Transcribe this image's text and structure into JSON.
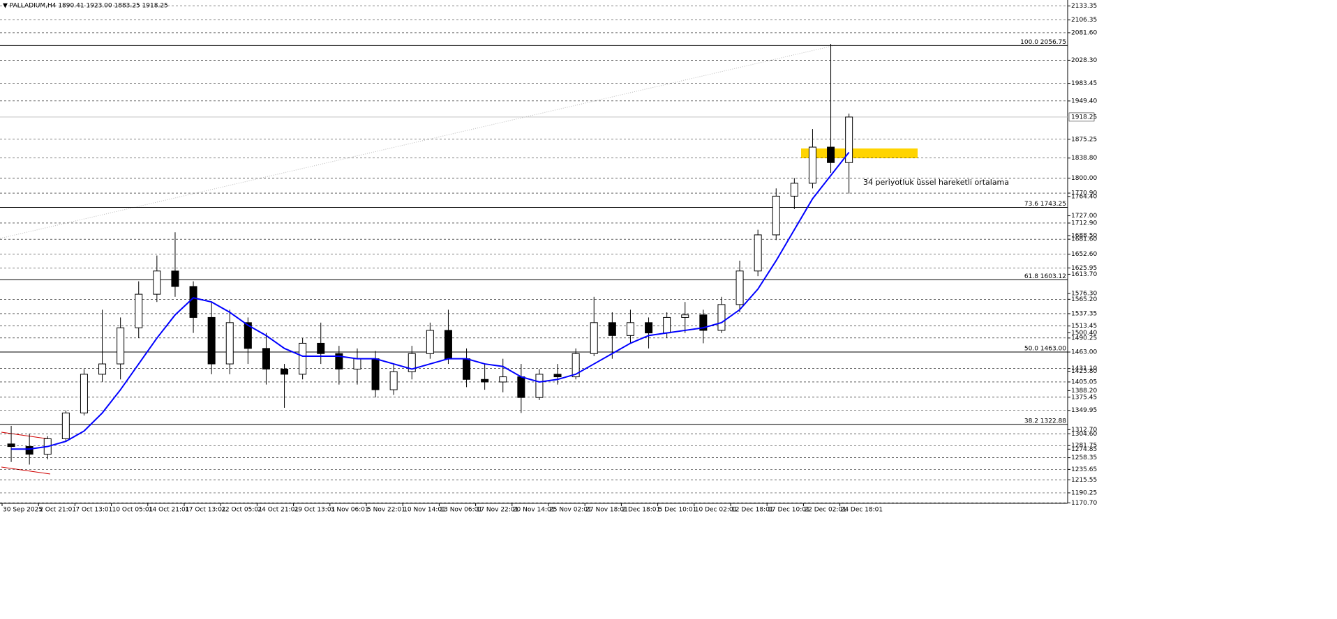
{
  "chart_data": {
    "type": "candlestick",
    "title": "▼ PALLADIUM,H4  1890.41 1923.00 1883.25 1918.25",
    "categories": [
      "30 Sep 2025",
      null,
      "2 Oct 21:01",
      null,
      "7 Oct 13:01",
      null,
      "10 Oct 05:01",
      null,
      "14 Oct 21:01",
      null,
      "17 Oct 13:01",
      null,
      "22 Oct 05:01",
      null,
      "24 Oct 21:01",
      null,
      "29 Oct 13:01",
      null,
      "3 Nov 06:01",
      null,
      "5 Nov 22:01",
      null,
      "10 Nov 14:01",
      null,
      "13 Nov 06:01",
      null,
      "17 Nov 22:01",
      null,
      "20 Nov 14:01",
      null,
      "25 Nov 02:01",
      null,
      "27 Nov 18:01",
      null,
      "2 Dec 18:01",
      null,
      "5 Dec 10:01",
      null,
      "10 Dec 02:01",
      null,
      "12 Dec 18:01",
      null,
      "17 Dec 10:01",
      null,
      "22 Dec 02:01",
      null,
      "24 Dec 18:01"
    ],
    "open": [
      1285,
      1280,
      1265,
      1295,
      1345,
      1420,
      1440,
      1510,
      1575,
      1620,
      1590,
      1530,
      1440,
      1520,
      1470,
      1430,
      1420,
      1480,
      1460,
      1430,
      1450,
      1390,
      1425,
      1460,
      1505,
      1450,
      1410,
      1405,
      1415,
      1375,
      1420,
      1415,
      1460,
      1520,
      1495,
      1520,
      1500,
      1530,
      1535,
      1505,
      1555,
      1620,
      1690,
      1765,
      1790,
      1860,
      1830
    ],
    "high": [
      1320,
      1305,
      1300,
      1350,
      1430,
      1545,
      1530,
      1600,
      1650,
      1695,
      1600,
      1560,
      1545,
      1530,
      1500,
      1440,
      1490,
      1520,
      1475,
      1470,
      1465,
      1440,
      1475,
      1520,
      1545,
      1470,
      1440,
      1450,
      1440,
      1430,
      1440,
      1470,
      1570,
      1540,
      1545,
      1530,
      1540,
      1560,
      1545,
      1570,
      1640,
      1700,
      1780,
      1800,
      1895,
      2060,
      1925
    ],
    "low": [
      1250,
      1245,
      1255,
      1290,
      1340,
      1405,
      1410,
      1490,
      1560,
      1570,
      1500,
      1420,
      1420,
      1440,
      1400,
      1355,
      1410,
      1440,
      1400,
      1400,
      1375,
      1380,
      1410,
      1450,
      1440,
      1395,
      1390,
      1385,
      1345,
      1370,
      1400,
      1410,
      1455,
      1450,
      1480,
      1470,
      1490,
      1500,
      1480,
      1500,
      1540,
      1610,
      1680,
      1740,
      1780,
      1810,
      1770
    ],
    "close": [
      1280,
      1265,
      1295,
      1345,
      1420,
      1440,
      1510,
      1575,
      1620,
      1590,
      1530,
      1440,
      1520,
      1470,
      1430,
      1420,
      1480,
      1460,
      1430,
      1450,
      1390,
      1425,
      1460,
      1505,
      1450,
      1410,
      1405,
      1415,
      1375,
      1420,
      1415,
      1460,
      1520,
      1495,
      1520,
      1500,
      1530,
      1535,
      1505,
      1555,
      1620,
      1690,
      1765,
      1790,
      1860,
      1830,
      1918.25
    ],
    "ema": {
      "color": "#0000ff",
      "values": [
        1275,
        1275,
        1280,
        1290,
        1310,
        1345,
        1390,
        1440,
        1490,
        1535,
        1568,
        1560,
        1540,
        1515,
        1495,
        1470,
        1455,
        1455,
        1455,
        1450,
        1450,
        1440,
        1430,
        1440,
        1450,
        1450,
        1440,
        1435,
        1415,
        1405,
        1410,
        1420,
        1440,
        1460,
        1480,
        1495,
        1500,
        1505,
        1510,
        1520,
        1545,
        1585,
        1640,
        1700,
        1760,
        1805,
        1850
      ]
    },
    "annotations": [
      {
        "text": "34 periyotluk üssel hareketli ortalama",
        "color": "#1f1fd6"
      }
    ],
    "ylim": [
      1170,
      2145
    ],
    "yticks": [
      2133.35,
      2106.35,
      {
        "value": 2081.6,
        "label": "2081.60"
      },
      {
        "value": 2028.3,
        "label": "2028.30"
      },
      1983.45,
      {
        "value": 1949.4,
        "label": "1949.40"
      },
      1875.25,
      {
        "value": 1838.8,
        "label": "1838.80"
      },
      {
        "value": 1800,
        "label": "1800.00"
      },
      {
        "value": 1770.9,
        "label": "1770.90"
      },
      {
        "value": 1712.9,
        "label": "1712.90"
      },
      {
        "value": 1681.6,
        "label": "1681.60"
      },
      {
        "value": 1652.6,
        "label": "1652.60"
      },
      1625.95,
      {
        "value": 1565.2,
        "label": "1565.20"
      },
      1537.35,
      1513.45,
      1490.25,
      {
        "value": 1431.1,
        "label": "1431.10"
      },
      1405.05,
      1375.45,
      1349.95,
      {
        "value": 1304.6,
        "label": "1304.60"
      },
      1281.75,
      1258.35,
      1235.65,
      1215.55,
      1190.25,
      {
        "value": 1170.7,
        "label": "1170.70"
      }
    ],
    "price_labels": [
      {
        "value": 1764.4,
        "label": "1764.40"
      },
      {
        "value": 1727,
        "label": "1727.00"
      },
      {
        "value": 1688.5,
        "label": "1688.50"
      },
      {
        "value": 1613.7,
        "label": "1613.70"
      },
      {
        "value": 1576.3,
        "label": "1576.30"
      },
      {
        "value": 1500.4,
        "label": "1500.40"
      },
      {
        "value": 1463,
        "label": "1463.00"
      },
      {
        "value": 1425.8,
        "label": "1425.80"
      },
      {
        "value": 1388.2,
        "label": "1388.20"
      },
      {
        "value": 1312.7,
        "label": "1312.70"
      },
      1274.85
    ],
    "fib_levels": [
      {
        "label": "100.0 2056.75",
        "value": 2056.75
      },
      {
        "label": "73.6 1743.25",
        "value": 1743.25
      },
      {
        "label": "61.8 1603.12",
        "value": 1603.12
      },
      {
        "label": "50.0 1463.00",
        "value": 1463
      },
      {
        "label": "38.2 1322.88",
        "value": 1322.88
      }
    ],
    "last_price": 1918.25,
    "grid": true
  }
}
